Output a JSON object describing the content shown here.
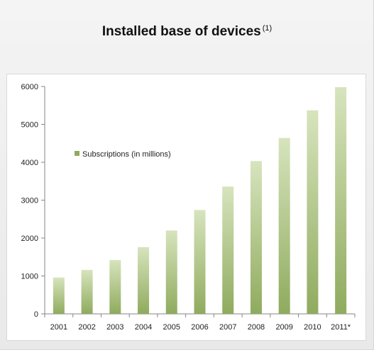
{
  "page": {
    "title": "Installed base of devices",
    "title_footnote": "(1)"
  },
  "chart_data": {
    "type": "bar",
    "title": "Installed base of devices",
    "categories": [
      "2001",
      "2002",
      "2003",
      "2004",
      "2005",
      "2006",
      "2007",
      "2008",
      "2009",
      "2010",
      "2011*"
    ],
    "series": [
      {
        "name": "Subscriptions (in millions)",
        "values": [
          960,
          1160,
          1420,
          1760,
          2200,
          2740,
          3360,
          4030,
          4640,
          5370,
          5980
        ],
        "color_top": "#d7e4bd",
        "color_bottom": "#8fab5e"
      }
    ],
    "xlabel": "",
    "ylabel": "",
    "ylim": [
      0,
      6000
    ],
    "yticks": [
      0,
      1000,
      2000,
      3000,
      4000,
      5000,
      6000
    ],
    "grid": false,
    "legend": "top-left"
  }
}
